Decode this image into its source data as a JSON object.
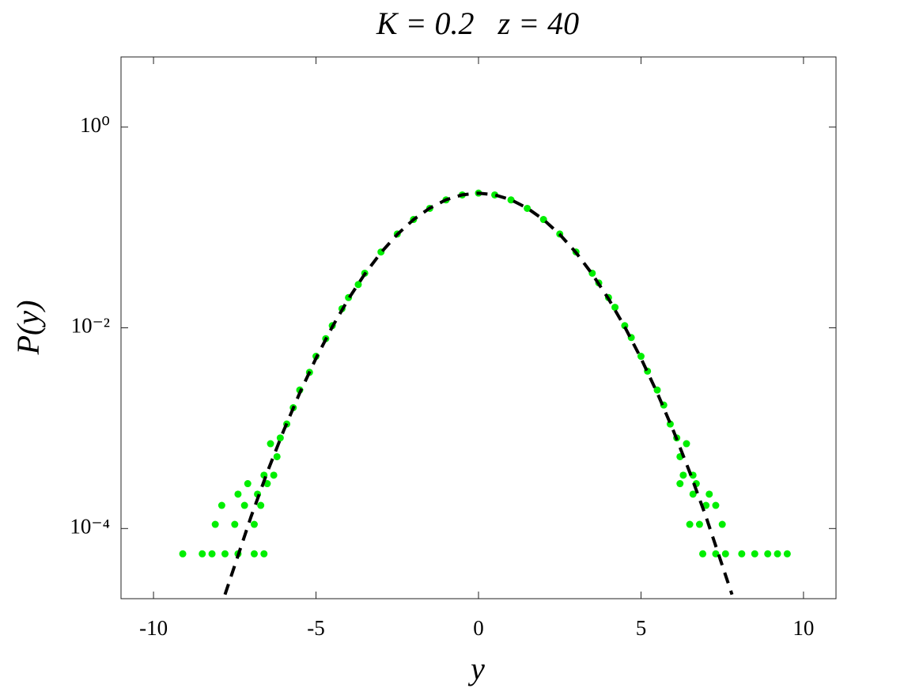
{
  "chart_data": {
    "type": "scatter",
    "title": "K = 0.2   z = 40",
    "xlabel": "y",
    "ylabel": "P(y)",
    "log_y": true,
    "xlim": [
      -11,
      11
    ],
    "ylim": [
      2e-05,
      5
    ],
    "xticks": [
      -10,
      -5,
      0,
      5,
      10
    ],
    "yticks": [
      {
        "value": 0.0001,
        "label": "10⁻⁴"
      },
      {
        "value": 0.01,
        "label": "10⁻²"
      },
      {
        "value": 1,
        "label": "10⁰"
      }
    ],
    "series": [
      {
        "type": "scatter",
        "color": "#00ee00",
        "x": [
          -9.1,
          -8.5,
          -8.2,
          -7.8,
          -7.4,
          -6.9,
          -6.6,
          -8.1,
          -7.5,
          -6.9,
          -7.9,
          -7.2,
          -6.7,
          -7.4,
          -6.8,
          -7.1,
          -6.5,
          -6.6,
          -6.3,
          -6.2,
          -6.4,
          -6.1,
          -5.9,
          -5.7,
          -5.5,
          -5.2,
          -5.0,
          -4.7,
          -4.5,
          -4.2,
          -4.0,
          -3.7,
          -3.5,
          -3.0,
          -2.5,
          -2.0,
          -1.5,
          -1.0,
          -0.5,
          0.0,
          0.5,
          1.0,
          1.5,
          2.0,
          2.5,
          3.0,
          3.5,
          3.7,
          4.0,
          4.2,
          4.5,
          4.7,
          5.0,
          5.2,
          5.5,
          5.7,
          5.9,
          6.1,
          6.4,
          6.2,
          6.3,
          6.6,
          6.2,
          6.7,
          6.6,
          7.1,
          7.0,
          7.3,
          6.5,
          6.8,
          7.5,
          6.9,
          7.3,
          7.6,
          8.1,
          8.5,
          8.9,
          9.2,
          9.5
        ],
        "values": [
          5.6e-05,
          5.6e-05,
          5.6e-05,
          5.6e-05,
          5.6e-05,
          5.6e-05,
          5.6e-05,
          0.00011,
          0.00011,
          0.00011,
          0.00017,
          0.00017,
          0.00017,
          0.00022,
          0.00022,
          0.00028,
          0.00028,
          0.00034,
          0.00034,
          0.00052,
          0.0007,
          0.0008,
          0.0011,
          0.0016,
          0.0024,
          0.0036,
          0.0052,
          0.0078,
          0.0105,
          0.0155,
          0.02,
          0.027,
          0.035,
          0.057,
          0.086,
          0.12,
          0.155,
          0.188,
          0.211,
          0.22,
          0.211,
          0.188,
          0.155,
          0.12,
          0.086,
          0.057,
          0.035,
          0.028,
          0.02,
          0.016,
          0.0105,
          0.008,
          0.0052,
          0.0037,
          0.0024,
          0.0017,
          0.0011,
          0.0008,
          0.0007,
          0.00052,
          0.00034,
          0.00034,
          0.00028,
          0.00028,
          0.00022,
          0.00022,
          0.00017,
          0.00017,
          0.00011,
          0.00011,
          0.00011,
          5.6e-05,
          5.6e-05,
          5.6e-05,
          5.6e-05,
          5.6e-05,
          5.6e-05,
          5.6e-05,
          5.6e-05
        ]
      },
      {
        "type": "line",
        "color": "#000000",
        "dashed": true,
        "x": [
          -7.8,
          -7,
          -6.5,
          -6,
          -5.5,
          -5,
          -4.5,
          -4,
          -3.5,
          -3,
          -2.5,
          -2,
          -1.5,
          -1,
          -0.5,
          0,
          0.5,
          1,
          1.5,
          2,
          2.5,
          3,
          3.5,
          4,
          4.5,
          5,
          5.5,
          6,
          6.5,
          7,
          7.8
        ],
        "values": [
          2.2e-05,
          0.000131,
          0.000364,
          0.000937,
          0.002245,
          0.00497,
          0.01022,
          0.01945,
          0.0343,
          0.0562,
          0.0852,
          0.1198,
          0.1558,
          0.1887,
          0.2114,
          0.2196,
          0.2114,
          0.1887,
          0.1558,
          0.1198,
          0.0852,
          0.0562,
          0.0343,
          0.01945,
          0.01022,
          0.00497,
          0.002245,
          0.000937,
          0.000364,
          0.000131,
          2.2e-05
        ]
      }
    ]
  }
}
